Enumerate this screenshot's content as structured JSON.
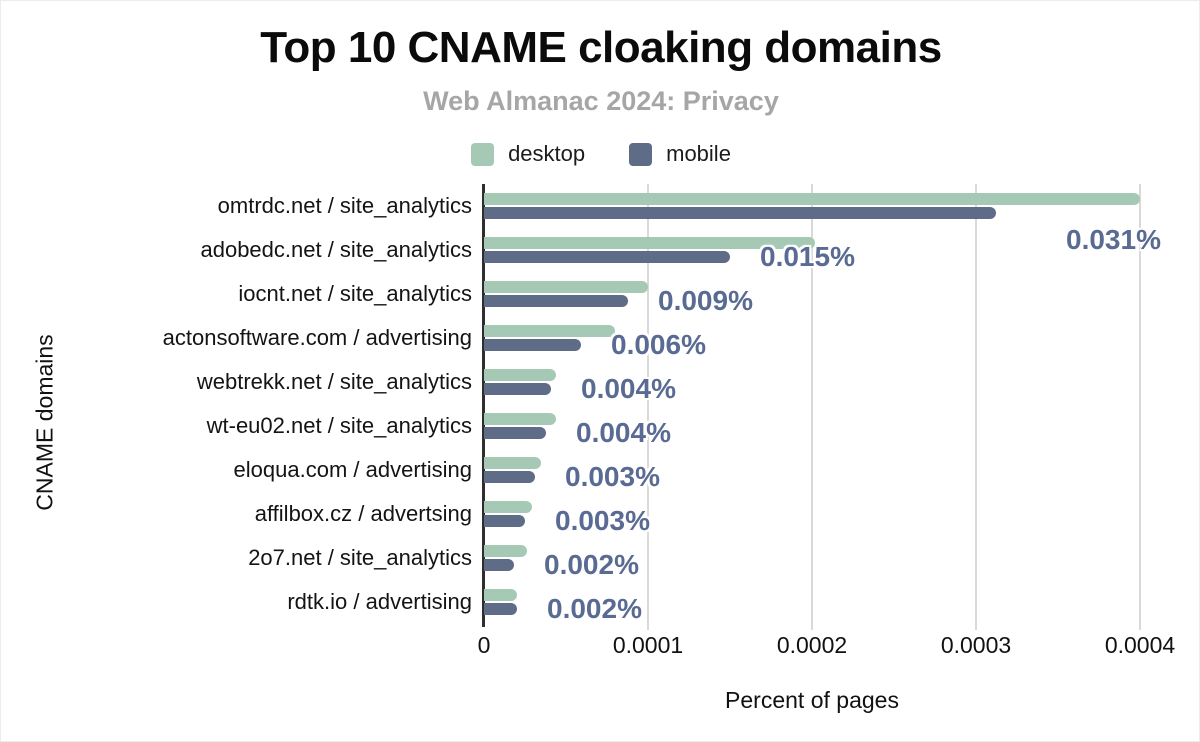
{
  "header": {
    "title": "Top 10 CNAME cloaking domains",
    "subtitle": "Web Almanac 2024: Privacy"
  },
  "legend": {
    "items": [
      {
        "label": "desktop",
        "color": "#a6c9b5"
      },
      {
        "label": "mobile",
        "color": "#5f6c87"
      }
    ]
  },
  "colors": {
    "desktop_bar": "#a6c9b5",
    "mobile_bar": "#5f6c87",
    "data_label": "#5a6b93",
    "gridline": "#d9d9d9",
    "axis_line": "#2e2e2e",
    "subtitle_text": "#a6a6a6",
    "background": "#ffffff"
  },
  "chart_data": {
    "type": "bar",
    "orientation": "horizontal",
    "title": "Top 10 CNAME cloaking domains",
    "subtitle": "Web Almanac 2024: Privacy",
    "xlabel": "Percent of pages",
    "ylabel": "CNAME domains",
    "xlim": [
      0,
      0.0004
    ],
    "x_ticks": [
      "0",
      "0.0001",
      "0.0002",
      "0.0003",
      "0.0004"
    ],
    "x_tick_values": [
      0,
      0.0001,
      0.0002,
      0.0003,
      0.0004
    ],
    "grid": "vertical gridlines on",
    "legend_position": "top",
    "categories": [
      "omtrdc.net / site_analytics",
      "adobedc.net / site_analytics",
      "iocnt.net / site_analytics",
      "actonsoftware.com / advertising",
      "webtrekk.net / site_analytics",
      "wt-eu02.net / site_analytics",
      "eloqua.com / advertising",
      "affilbox.cz / advertsing",
      "2o7.net / site_analytics",
      "rdtk.io / advertising"
    ],
    "series": [
      {
        "name": "desktop",
        "color": "#a6c9b5",
        "values": [
          0.0004,
          0.000202,
          0.0001,
          8e-05,
          4.4e-05,
          4.4e-05,
          3.5e-05,
          2.9e-05,
          2.6e-05,
          2e-05
        ]
      },
      {
        "name": "mobile",
        "color": "#5f6c87",
        "values": [
          0.000312,
          0.00015,
          8.8e-05,
          5.9e-05,
          4.1e-05,
          3.8e-05,
          3.1e-05,
          2.5e-05,
          1.8e-05,
          2e-05
        ]
      }
    ],
    "data_labels": {
      "labelled_series": "mobile",
      "values": [
        "0.031%",
        "0.015%",
        "0.009%",
        "0.006%",
        "0.004%",
        "0.004%",
        "0.003%",
        "0.003%",
        "0.002%",
        "0.002%"
      ]
    }
  }
}
